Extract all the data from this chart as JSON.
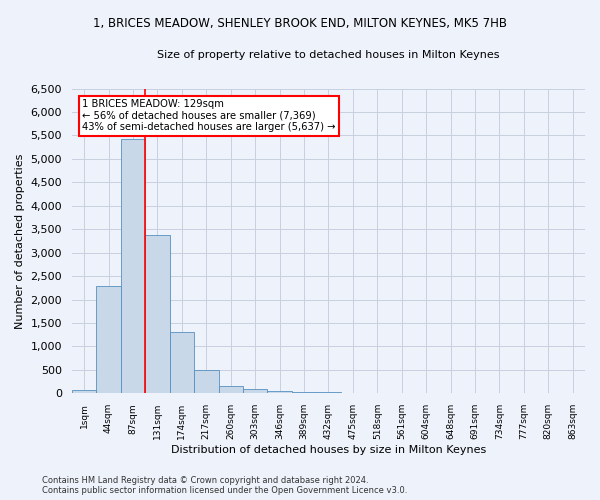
{
  "title": "1, BRICES MEADOW, SHENLEY BROOK END, MILTON KEYNES, MK5 7HB",
  "subtitle": "Size of property relative to detached houses in Milton Keynes",
  "xlabel": "Distribution of detached houses by size in Milton Keynes",
  "ylabel": "Number of detached properties",
  "footer_line1": "Contains HM Land Registry data © Crown copyright and database right 2024.",
  "footer_line2": "Contains public sector information licensed under the Open Government Licence v3.0.",
  "bar_labels": [
    "1sqm",
    "44sqm",
    "87sqm",
    "131sqm",
    "174sqm",
    "217sqm",
    "260sqm",
    "303sqm",
    "346sqm",
    "389sqm",
    "432sqm",
    "475sqm",
    "518sqm",
    "561sqm",
    "604sqm",
    "648sqm",
    "691sqm",
    "734sqm",
    "777sqm",
    "820sqm",
    "863sqm"
  ],
  "bar_values": [
    70,
    2280,
    5430,
    3380,
    1310,
    490,
    165,
    85,
    55,
    35,
    20,
    10,
    5,
    3,
    2,
    1,
    1,
    0,
    0,
    0,
    0
  ],
  "bar_color": "#c8d8e8",
  "bar_edge_color": "#5590c0",
  "grid_color": "#c8d0e0",
  "annotation_text": "1 BRICES MEADOW: 129sqm\n← 56% of detached houses are smaller (7,369)\n43% of semi-detached houses are larger (5,637) →",
  "annotation_box_color": "white",
  "annotation_box_edge": "red",
  "vline_color": "red",
  "ylim": [
    0,
    6500
  ],
  "yticks": [
    0,
    500,
    1000,
    1500,
    2000,
    2500,
    3000,
    3500,
    4000,
    4500,
    5000,
    5500,
    6000,
    6500
  ],
  "background_color": "#eef2fa"
}
